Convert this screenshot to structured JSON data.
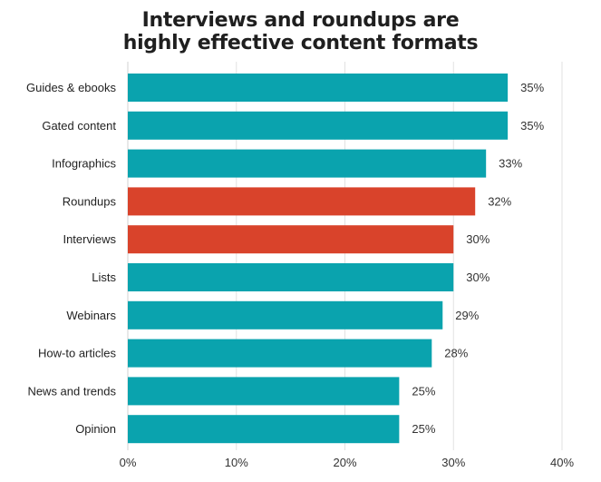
{
  "chart_data": {
    "type": "bar",
    "orientation": "horizontal",
    "title": "Interviews and roundups are highly effective content formats",
    "title_lines": [
      "Interviews and roundups are",
      "highly effective content formats"
    ],
    "categories": [
      "Guides & ebooks",
      "Gated content",
      "Infographics",
      "Roundups",
      "Interviews",
      "Lists",
      "Webinars",
      "How-to articles",
      "News and trends",
      "Opinion"
    ],
    "values": [
      35,
      35,
      33,
      32,
      30,
      30,
      29,
      28,
      25,
      25
    ],
    "value_labels": [
      "35%",
      "35%",
      "33%",
      "32%",
      "30%",
      "30%",
      "29%",
      "28%",
      "25%",
      "25%"
    ],
    "highlighted": [
      false,
      false,
      false,
      true,
      true,
      false,
      false,
      false,
      false,
      false
    ],
    "xlim": [
      0,
      40
    ],
    "xticks": [
      0,
      10,
      20,
      30,
      40
    ],
    "xtick_labels": [
      "0%",
      "10%",
      "20%",
      "30%",
      "40%"
    ],
    "xlabel": "",
    "ylabel": "",
    "grid": "vertical",
    "legend": "none",
    "colors": {
      "default": "#0aa3ae",
      "highlight": "#d9432b",
      "grid": "#e2e2e2"
    }
  }
}
